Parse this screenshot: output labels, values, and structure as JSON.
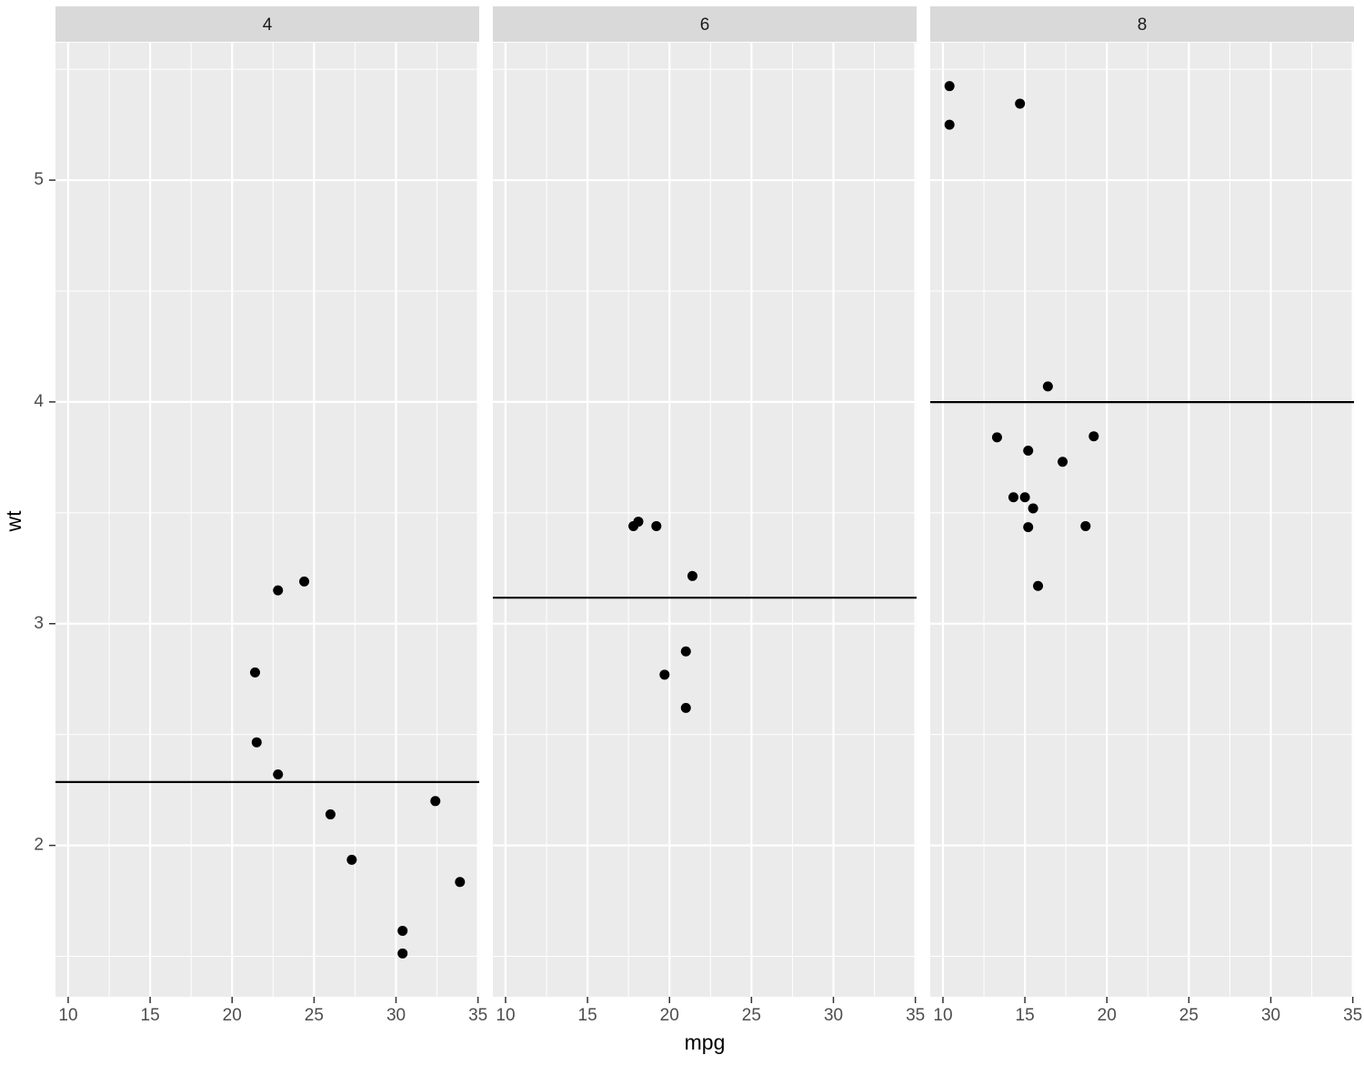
{
  "chart_data": {
    "type": "scatter",
    "xlabel": "mpg",
    "ylabel": "wt",
    "xlim": [
      9.225,
      35.075
    ],
    "ylim": [
      1.31745,
      5.61955
    ],
    "xticks": [
      10,
      15,
      20,
      25,
      30,
      35
    ],
    "yticks": [
      2,
      3,
      4,
      5
    ],
    "xminor_ticks": [
      12.5,
      17.5,
      22.5,
      27.5,
      32.5
    ],
    "yminor_ticks": [
      1.5,
      2.5,
      3.5,
      4.5,
      5.5
    ],
    "grid": true,
    "color": "#000000",
    "hline_color": "#000000",
    "facets": [
      {
        "title": "4",
        "x": [
          22.8,
          24.4,
          22.8,
          32.4,
          30.4,
          33.9,
          21.5,
          27.3,
          26.0,
          30.4,
          21.4
        ],
        "y": [
          2.32,
          3.19,
          3.15,
          2.2,
          1.615,
          1.835,
          2.465,
          1.935,
          2.14,
          1.513,
          2.78
        ],
        "hline": 2.2857
      },
      {
        "title": "6",
        "x": [
          21.0,
          21.0,
          21.4,
          18.1,
          19.2,
          17.8,
          19.7
        ],
        "y": [
          2.62,
          2.875,
          3.215,
          3.46,
          3.44,
          3.44,
          2.77
        ],
        "hline": 3.117
      },
      {
        "title": "8",
        "x": [
          18.7,
          14.3,
          16.4,
          17.3,
          15.2,
          10.4,
          10.4,
          14.7,
          15.5,
          15.2,
          13.3,
          19.2,
          15.8,
          15.0
        ],
        "y": [
          3.44,
          3.57,
          4.07,
          3.73,
          3.78,
          5.25,
          5.424,
          5.345,
          3.52,
          3.435,
          3.84,
          3.845,
          3.17,
          3.57
        ],
        "hline": 3.9992
      }
    ]
  }
}
